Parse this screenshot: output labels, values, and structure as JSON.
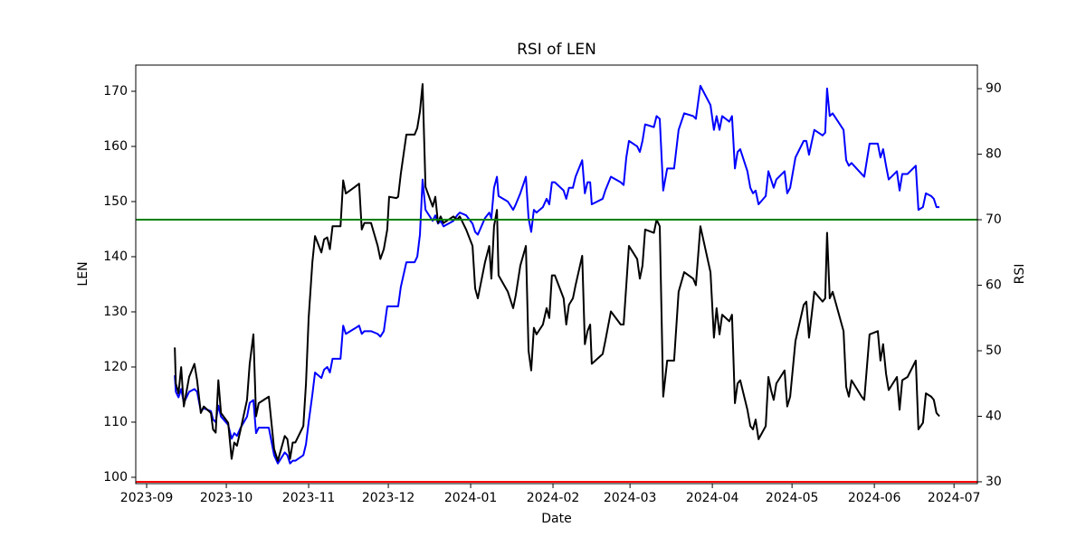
{
  "chart_data": {
    "type": "line",
    "title": "RSI of LEN",
    "xlabel": "Date",
    "ylabel": "LEN",
    "y2label": "RSI",
    "ylabel_color": "#0000ff",
    "x": [
      10.6,
      11,
      12,
      13,
      14,
      16,
      18,
      19,
      20.4,
      21.5,
      24.2,
      25,
      26,
      27,
      28,
      30.7,
      32,
      33,
      34,
      35.4,
      37.8,
      38.8,
      40.2,
      41.2,
      42.2,
      46,
      48,
      49.4,
      52,
      53,
      54,
      55,
      56,
      59,
      60,
      61,
      62.4,
      63.4,
      65.8,
      66.8,
      68,
      69,
      70,
      73,
      74,
      75,
      78.4,
      80,
      81,
      82,
      84.5,
      87,
      88,
      89.3,
      90.6,
      91.3,
      94,
      94.7,
      95.7,
      97.8,
      100.9,
      101.9,
      102.9,
      103.9,
      105,
      107.7,
      108.7,
      109.7,
      110.7,
      111.8,
      115.5,
      116.9,
      117.9,
      120.3,
      122.7,
      123.7,
      124.7,
      127.4,
      129,
      129.8,
      130.8,
      131.9,
      132.5,
      136,
      138,
      139,
      140.7,
      142.8,
      143.8,
      144.8,
      145.8,
      146.8,
      149.2,
      150.6,
      151.6,
      152.6,
      153.7,
      157,
      158,
      159,
      160.5,
      161.5,
      164,
      165,
      166,
      167,
      167.6,
      171.7,
      172.7,
      174.8,
      178.5,
      179.6,
      180.6,
      181.6,
      184.7,
      185.7,
      186.7,
      187.7,
      191,
      192,
      193.2,
      194.5,
      196,
      198.6,
      200.3,
      202.4,
      205.8,
      206.8,
      208.5,
      212.3,
      213.6,
      214.6,
      215.7,
      216.7,
      219.4,
      220.4,
      221.5,
      222.5,
      223.5,
      226.2,
      227.3,
      228.3,
      229.3,
      230.4,
      233.1,
      234.1,
      235.1,
      236.1,
      237.1,
      240.2,
      241.2,
      242.3,
      244.3,
      247.4,
      248.4,
      249.4,
      251.4,
      254.5,
      255.5,
      256.2,
      257.2,
      258.3,
      262.4,
      263.4,
      264.4,
      265.4,
      269.2,
      270.2,
      272.2,
      275.3,
      276.3,
      277.3,
      278.4,
      279.4,
      282.5,
      283.5,
      284.5,
      286.5,
      289.6,
      290.6,
      292.3,
      293.4,
      295.4,
      296.4,
      297.4,
      298.5
    ],
    "series": [
      {
        "color": "#0000ff",
        "axis": "y",
        "values": [
          118.5,
          115.5,
          114.5,
          116,
          113.5,
          115.5,
          116,
          115.5,
          112,
          112.5,
          112,
          110.5,
          110,
          113,
          111,
          109.5,
          107,
          108,
          107.5,
          109,
          111,
          113.5,
          114,
          108,
          109,
          109,
          104,
          102.5,
          104.5,
          104,
          102.5,
          103,
          103,
          104,
          106,
          110,
          115,
          119,
          118,
          119.5,
          120,
          119,
          121.5,
          121.5,
          127.5,
          126,
          127,
          127.5,
          126,
          126.5,
          126.5,
          126,
          125.5,
          126.5,
          131,
          131,
          131,
          131,
          134.5,
          139,
          139,
          140,
          144,
          154,
          148.5,
          146.5,
          147.5,
          146,
          146.5,
          145.5,
          146.5,
          147.5,
          148,
          147.5,
          146,
          144.5,
          144,
          147,
          148,
          147,
          152.5,
          154.5,
          151,
          150,
          148.5,
          149.5,
          151.5,
          154.5,
          147,
          144.5,
          148.5,
          148,
          149,
          150.5,
          149.5,
          153.5,
          153.5,
          152,
          150.5,
          152.5,
          152.5,
          154.5,
          157.5,
          151.5,
          153.5,
          153.5,
          149.5,
          150.5,
          152,
          154.5,
          153.5,
          153,
          158,
          161,
          160,
          159,
          161,
          164,
          163.5,
          165.5,
          165,
          152,
          156,
          156,
          163,
          166,
          165.5,
          165,
          171,
          167.5,
          163,
          165.5,
          163,
          165.5,
          164.5,
          165.5,
          156,
          159,
          159.5,
          155.5,
          152.5,
          151.5,
          152,
          149.5,
          151,
          155.5,
          154,
          152.5,
          154,
          155.5,
          151.5,
          152.5,
          158,
          161,
          161,
          158.5,
          163,
          162,
          162.5,
          170.5,
          165.5,
          166,
          163,
          157.5,
          156.5,
          157,
          155,
          154.5,
          160.5,
          160.5,
          158,
          159.5,
          156.5,
          154,
          155.5,
          152,
          155,
          155,
          156.5,
          148.5,
          149,
          151.5,
          151,
          150.5,
          149,
          149
        ]
      },
      {
        "color": "#000000",
        "axis": "y2",
        "values": [
          50.5,
          45,
          43.5,
          47.5,
          41.5,
          46,
          48,
          45.5,
          40.5,
          41.5,
          40.5,
          38,
          37.5,
          45.5,
          40.5,
          39,
          33.5,
          36,
          35.5,
          38,
          42.5,
          48,
          52.5,
          40,
          42,
          43,
          35,
          33.2,
          37,
          36.5,
          33.5,
          36,
          36,
          38.5,
          45,
          55,
          63.5,
          67.5,
          65,
          67,
          67.3,
          65.5,
          69,
          69,
          76,
          74,
          75,
          75.5,
          68.5,
          69.5,
          69.5,
          66,
          64,
          65.5,
          68.5,
          73.5,
          73.3,
          73.5,
          77,
          83,
          83,
          84,
          86.5,
          90.7,
          75,
          72,
          73.5,
          69.5,
          70.5,
          69.5,
          70.5,
          70,
          70.5,
          68.5,
          66,
          59.5,
          58,
          63.5,
          66,
          61,
          69,
          71.5,
          61.5,
          59,
          56.5,
          58.5,
          63,
          66,
          50,
          47,
          53.5,
          52.5,
          54,
          56.5,
          55,
          61.5,
          61.5,
          58,
          54,
          57,
          58,
          60,
          64.5,
          51,
          53,
          54,
          48,
          49.5,
          51.5,
          56,
          54,
          54,
          60,
          66,
          64,
          61,
          63,
          68.5,
          68,
          70,
          69,
          43,
          48.5,
          48.5,
          59,
          62,
          61,
          60,
          69,
          62,
          52,
          56.5,
          52.5,
          55.5,
          54.5,
          55.5,
          42,
          45,
          45.5,
          41,
          38.5,
          38,
          39.5,
          36.5,
          38.5,
          46,
          44,
          42.5,
          45,
          47,
          41.5,
          43,
          51.5,
          57,
          57.5,
          52,
          59,
          57.5,
          58,
          68,
          58,
          59,
          53,
          44.5,
          43,
          45.5,
          43,
          42.5,
          52.5,
          53,
          48.5,
          51,
          46.5,
          44,
          46,
          41,
          45.5,
          46,
          48.5,
          38,
          39,
          43.5,
          43,
          42.5,
          40.5,
          40
        ]
      }
    ],
    "hlines": [
      {
        "value": 70,
        "color": "#008000",
        "axis": "y2"
      },
      {
        "value": 30,
        "color": "#ff0000",
        "axis": "y2"
      }
    ],
    "xlim": [
      -4.1,
      312.8
    ],
    "xticks": [
      {
        "value": 0,
        "label": "2023-09"
      },
      {
        "value": 30,
        "label": "2023-10"
      },
      {
        "value": 61,
        "label": "2023-11"
      },
      {
        "value": 91,
        "label": "2023-12"
      },
      {
        "value": 122,
        "label": "2024-01"
      },
      {
        "value": 153,
        "label": "2024-02"
      },
      {
        "value": 182,
        "label": "2024-03"
      },
      {
        "value": 213,
        "label": "2024-04"
      },
      {
        "value": 243,
        "label": "2024-05"
      },
      {
        "value": 274,
        "label": "2024-06"
      },
      {
        "value": 304,
        "label": "2024-07"
      }
    ],
    "ylim": [
      98.85,
      174.75
    ],
    "yticks": [
      100,
      110,
      120,
      130,
      140,
      150,
      160,
      170
    ],
    "y2lim": [
      29.72,
      93.6
    ],
    "y2ticks": [
      30,
      40,
      50,
      60,
      70,
      80,
      90
    ]
  }
}
